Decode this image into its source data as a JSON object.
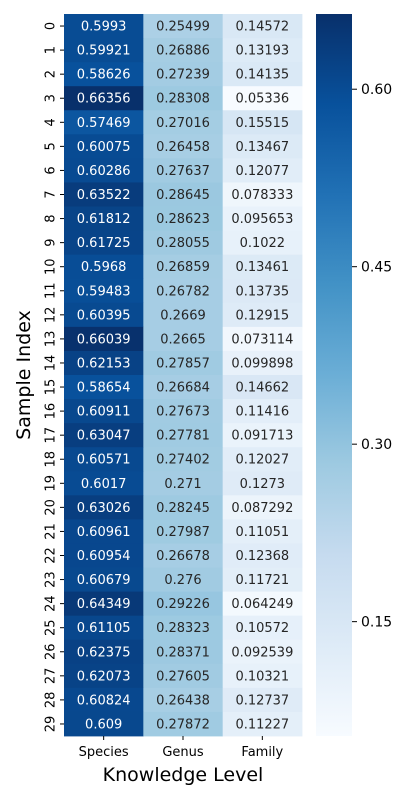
{
  "chart_data": {
    "type": "heatmap",
    "xlabel": "Knowledge Level",
    "ylabel": "Sample Index",
    "columns": [
      "Species",
      "Genus",
      "Family"
    ],
    "rows": [
      "0",
      "1",
      "2",
      "3",
      "4",
      "5",
      "6",
      "7",
      "8",
      "9",
      "10",
      "11",
      "12",
      "13",
      "14",
      "15",
      "16",
      "17",
      "18",
      "19",
      "20",
      "21",
      "22",
      "23",
      "24",
      "25",
      "26",
      "27",
      "28",
      "29"
    ],
    "values": [
      [
        "0.5993",
        "0.25499",
        "0.14572"
      ],
      [
        "0.59921",
        "0.26886",
        "0.13193"
      ],
      [
        "0.58626",
        "0.27239",
        "0.14135"
      ],
      [
        "0.66356",
        "0.28308",
        "0.05336"
      ],
      [
        "0.57469",
        "0.27016",
        "0.15515"
      ],
      [
        "0.60075",
        "0.26458",
        "0.13467"
      ],
      [
        "0.60286",
        "0.27637",
        "0.12077"
      ],
      [
        "0.63522",
        "0.28645",
        "0.078333"
      ],
      [
        "0.61812",
        "0.28623",
        "0.095653"
      ],
      [
        "0.61725",
        "0.28055",
        "0.1022"
      ],
      [
        "0.5968",
        "0.26859",
        "0.13461"
      ],
      [
        "0.59483",
        "0.26782",
        "0.13735"
      ],
      [
        "0.60395",
        "0.2669",
        "0.12915"
      ],
      [
        "0.66039",
        "0.2665",
        "0.073114"
      ],
      [
        "0.62153",
        "0.27857",
        "0.099898"
      ],
      [
        "0.58654",
        "0.26684",
        "0.14662"
      ],
      [
        "0.60911",
        "0.27673",
        "0.11416"
      ],
      [
        "0.63047",
        "0.27781",
        "0.091713"
      ],
      [
        "0.60571",
        "0.27402",
        "0.12027"
      ],
      [
        "0.6017",
        "0.271",
        "0.1273"
      ],
      [
        "0.63026",
        "0.28245",
        "0.087292"
      ],
      [
        "0.60961",
        "0.27987",
        "0.11051"
      ],
      [
        "0.60954",
        "0.26678",
        "0.12368"
      ],
      [
        "0.60679",
        "0.276",
        "0.11721"
      ],
      [
        "0.64349",
        "0.29226",
        "0.064249"
      ],
      [
        "0.61105",
        "0.28323",
        "0.10572"
      ],
      [
        "0.62375",
        "0.28371",
        "0.092539"
      ],
      [
        "0.62073",
        "0.27605",
        "0.10321"
      ],
      [
        "0.60824",
        "0.26438",
        "0.12737"
      ],
      [
        "0.609",
        "0.27872",
        "0.11227"
      ]
    ],
    "colormap": "Blues",
    "colormap_stops": [
      "#f7fbff",
      "#deebf7",
      "#c6dbef",
      "#9ecae1",
      "#6baed6",
      "#4292c6",
      "#2171b5",
      "#08519c",
      "#08306b"
    ],
    "vmin": 0.05336,
    "vmax": 0.66356,
    "colorbar_ticks": [
      "0.15",
      "0.30",
      "0.45",
      "0.60"
    ],
    "grid": false,
    "legend": "colorbar-right"
  }
}
